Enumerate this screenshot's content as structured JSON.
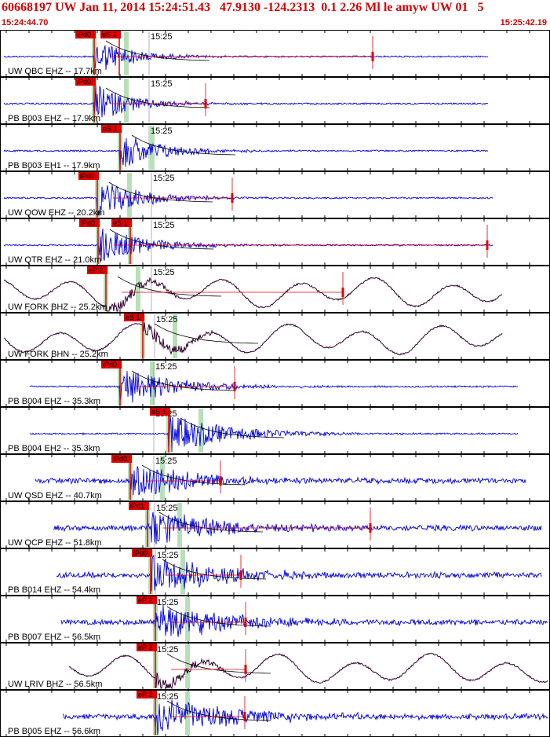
{
  "title": "60668197 UW Jan 11, 2014 15:24:51.43   47.9130 -124.2313  0.1 2.26 Ml le amyw UW 01   5",
  "start_time": "15:24:44.70",
  "end_time": "15:25:42.19",
  "minute_label": "15:25",
  "colors": {
    "title": "#d40000",
    "trace_blue": "#0000e0",
    "trace_dark": "#300030",
    "pick_red": "#e00000",
    "window_green": "#b8e0b8",
    "grid": "#000000"
  },
  "traces": [
    {
      "station": "UW QBC EHZ -- 17.7km",
      "color": "blue",
      "picks": [
        {
          "label": "iPd0",
          "x": 120
        },
        {
          "label": "eS 2",
          "x": 152
        }
      ]
    },
    {
      "station": "PB B003 EHZ -- 17.9km",
      "color": "blue",
      "picks": [
        {
          "label": "iPd0",
          "x": 120
        }
      ]
    },
    {
      "station": "PB B003 EH1 -- 17.9km",
      "color": "blue",
      "picks": [
        {
          "label": "eS 1",
          "x": 153
        }
      ]
    },
    {
      "station": "UW QOW EHZ -- 20.2km",
      "color": "blue",
      "picks": [
        {
          "label": "iPd0",
          "x": 124
        }
      ]
    },
    {
      "station": "UW QTR EHZ -- 21.0km",
      "color": "blue",
      "picks": [
        {
          "label": "iPd0",
          "x": 125
        },
        {
          "label": "eS 1",
          "x": 166
        }
      ]
    },
    {
      "station": "UW FORK BHZ -- 25.2km",
      "color": "dark",
      "picks": [
        {
          "label": "eP 2",
          "x": 135
        }
      ]
    },
    {
      "station": "UW FORK BHN -- 25.2km",
      "color": "dark",
      "picks": [
        {
          "label": "eS 1",
          "x": 182
        }
      ]
    },
    {
      "station": "PB B004 EHZ -- 35.3km",
      "color": "blue",
      "picks": [
        {
          "label": "iPd0",
          "x": 153
        }
      ]
    },
    {
      "station": "PB B004 EH2 -- 35.3km",
      "color": "blue",
      "picks": [
        {
          "label": "eS 1",
          "x": 215
        }
      ]
    },
    {
      "station": "UW QSD EHZ -- 40.7km",
      "color": "blue",
      "picks": [
        {
          "label": "iPd0",
          "x": 166
        }
      ]
    },
    {
      "station": "UW QCP EHZ -- 51.8km",
      "color": "blue",
      "picks": [
        {
          "label": "iPd1",
          "x": 188
        }
      ]
    },
    {
      "station": "PB B014 EHZ -- 54.4km",
      "color": "blue",
      "picks": [
        {
          "label": "iPd0",
          "x": 192
        }
      ]
    },
    {
      "station": "PB B007 EHZ -- 56.5km",
      "color": "blue",
      "picks": [
        {
          "label": "eP 2",
          "x": 198
        }
      ]
    },
    {
      "station": "UW LRIV BHZ -- 56.5km",
      "color": "dark",
      "picks": [
        {
          "label": "eP 2",
          "x": 198
        }
      ]
    },
    {
      "station": "PB B005 EHZ -- 56.6km",
      "color": "blue",
      "picks": [
        {
          "label": "eP 2",
          "x": 198
        }
      ]
    }
  ]
}
